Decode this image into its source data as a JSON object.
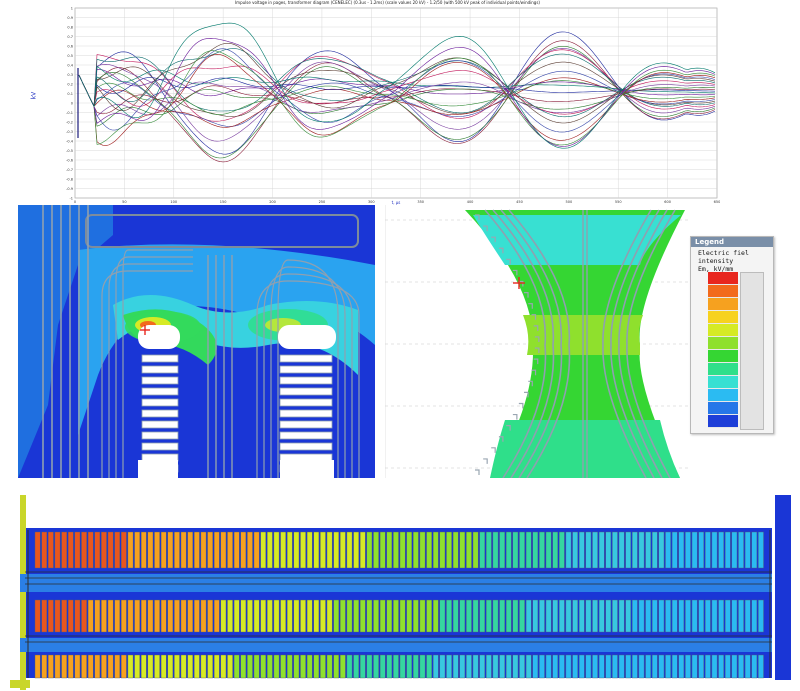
{
  "waveform": {
    "title": "Impulse voltage in pages, transformer diagram (CENELEC) (0.3us - 1.2ms) (scale values 20 kV) - 1.2/50 (with 500 kV peak of individual points/windings)",
    "y_label": "kV",
    "x_label": "t, µs",
    "y_ticks": [
      "1",
      "0.9",
      "0.8",
      "0.7",
      "0.6",
      "0.5",
      "0.4",
      "0.3",
      "0.2",
      "0.1",
      "0",
      "-0.1",
      "-0.2",
      "-0.3",
      "-0.4",
      "-0.5",
      "-0.6",
      "-0.7",
      "-0.8",
      "-0.9",
      "-1"
    ],
    "x_ticks": [
      "0",
      "50",
      "100",
      "150",
      "200",
      "250",
      "300",
      "350",
      "400",
      "450",
      "500",
      "550",
      "600",
      "650"
    ],
    "curve_count": 24
  },
  "legend": {
    "title": "Legend",
    "lines": [
      "Electric fiel",
      "intensity",
      "Em, kV/mm"
    ],
    "colors": [
      "#e8261e",
      "#f26a1c",
      "#f6a11f",
      "#f7d21f",
      "#d6ea25",
      "#8fe02d",
      "#35d633",
      "#2fdf8a",
      "#38e0d2",
      "#2bbbf2",
      "#2677e8",
      "#1e3fd8"
    ]
  },
  "colors": {
    "deep_blue": "#1a36d6",
    "field_blue": "#1e6ae0",
    "field_green": "#2ed65a",
    "hot_red": "#e8261e",
    "winding_outline": "#7d8c9c"
  }
}
